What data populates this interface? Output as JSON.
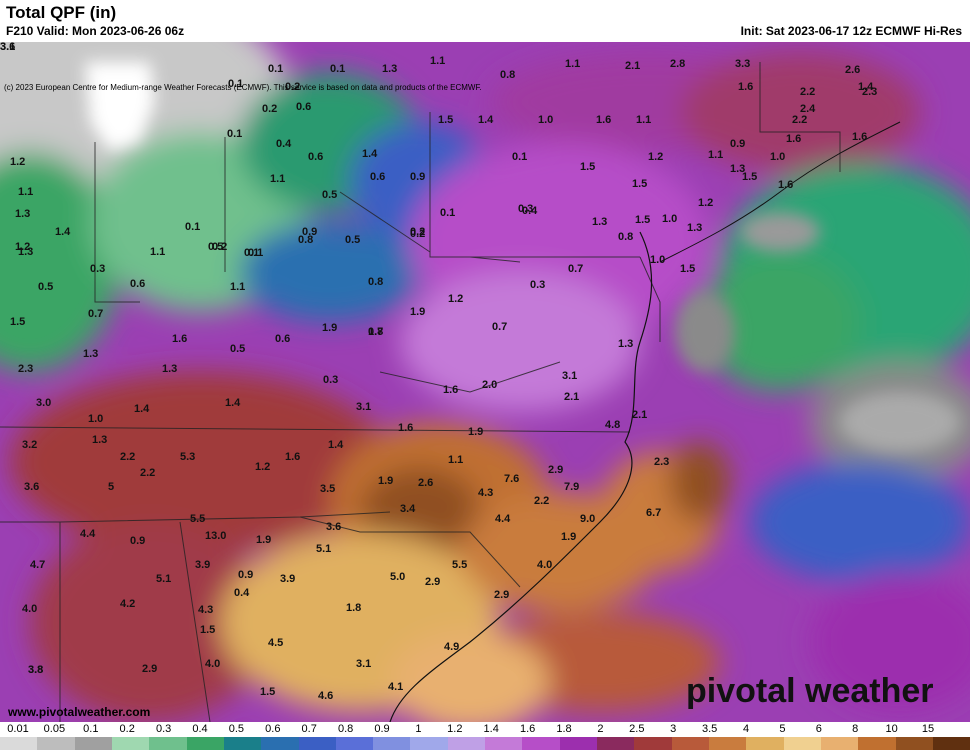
{
  "header": {
    "title": "Total QPF (in)",
    "valid": "F210 Valid: Mon 2023-06-26 06z",
    "init": "Init: Sat 2023-06-17 12z ECMWF Hi-Res",
    "copyright": "(c) 2023 European Centre for Medium-range Weather Forecasts (ECMWF). This service is based on data and products of the ECMWF."
  },
  "footer": {
    "website": "www.pivotalweather.com",
    "logo_left": "piv",
    "logo_right": "tal weather"
  },
  "legend": {
    "labels": [
      "0.01",
      "0.05",
      "0.1",
      "0.2",
      "0.3",
      "0.4",
      "0.5",
      "0.6",
      "0.7",
      "0.8",
      "0.9",
      "1",
      "1.2",
      "1.4",
      "1.6",
      "1.8",
      "2",
      "2.5",
      "3",
      "3.5",
      "4",
      "5",
      "6",
      "8",
      "10",
      "15"
    ],
    "colors": [
      "#dadada",
      "#bdbdbd",
      "#a0a0a0",
      "#9fd8b0",
      "#6fc08d",
      "#3aa565",
      "#1a7f8a",
      "#2a6fb0",
      "#3b5fc4",
      "#5a6fd8",
      "#8090e0",
      "#a0a8ea",
      "#bfa0e6",
      "#c47ad8",
      "#b64ec8",
      "#9c2fae",
      "#8a2a5e",
      "#a03a3a",
      "#b85a3a",
      "#c97c3e",
      "#e0b060",
      "#f0d090",
      "#e8b070",
      "#c07030",
      "#905020",
      "#603010"
    ]
  },
  "precip_values": [
    "0.1",
    "0.1",
    "1.3",
    "1.1",
    "0.8",
    "1.1",
    "2.1",
    "2.8",
    "3.3",
    "2.6",
    "0.1",
    "0.2",
    "1.4",
    "1.6",
    "2.2",
    "2.3",
    "0.2",
    "0.6",
    "2.4",
    "1.5",
    "1.4",
    "1.0",
    "1.6",
    "1.1",
    "2.2",
    "0.1",
    "0.4",
    "0.6",
    "1.4",
    "0.9",
    "1.6",
    "1.6",
    "1.2",
    "0.1",
    "1.2",
    "1.1",
    "1.0",
    "1.1",
    "0.6",
    "0.9",
    "1.5",
    "1.5",
    "1.3",
    "1.1",
    "0.5",
    "0.3",
    "1.2",
    "1.5",
    "1.6",
    "1.3",
    "1.4",
    "0.1",
    "0.1",
    "0.4",
    "1.3",
    "1.5",
    "1.0",
    "1.2",
    "1.1",
    "0.2",
    "0.1",
    "0.8",
    "0.5",
    "0.8",
    "1.3",
    "1.3",
    "0.9",
    "0.5",
    "0.1",
    "0.2",
    "0.3",
    "0.8",
    "0.2",
    "1.0",
    "1.5",
    "0.5",
    "0.6",
    "1.1",
    "0.3",
    "0.7",
    "0.7",
    "1.2",
    "1.9",
    "0.7",
    "1.5",
    "1.6",
    "0.6",
    "1.9",
    "1.7",
    "1.3",
    "1.3",
    "0.5",
    "0.8",
    "2.3",
    "1.3",
    "0.3",
    "1.6",
    "2.0",
    "3.1",
    "3.0",
    "1.4",
    "1.4",
    "3.1",
    "2.1",
    "2.1",
    "1.0",
    "1.6",
    "1.9",
    "4.8",
    "3.2",
    "1.3",
    "1.4",
    "1.1",
    "2.2",
    "5.3",
    "1.6",
    "2.9",
    "2.3",
    "3.6",
    "5",
    "2.2",
    "1.2",
    "1.9",
    "2.6",
    "7.6",
    "7.9",
    "3.5",
    "4.3",
    "2.2",
    "5.5",
    "3.4",
    "4.4",
    "9.0",
    "6.7",
    "4.4",
    "13.0",
    "0.9",
    "3.6",
    "1.9",
    "5.1",
    "1.9",
    "4.7",
    "3.9",
    "0.9",
    "5.0",
    "2.9",
    "5.5",
    "4.0",
    "5.1",
    "3.9",
    "2.9",
    "4.0",
    "4.2",
    "0.4",
    "1.8",
    "3.8",
    "4.3",
    "1.5",
    "4.5",
    "4.0",
    "3.1",
    "4.9",
    "3.8",
    "2.9",
    "1.5",
    "4.6",
    "4.1",
    "3.6",
    "3.1"
  ]
}
